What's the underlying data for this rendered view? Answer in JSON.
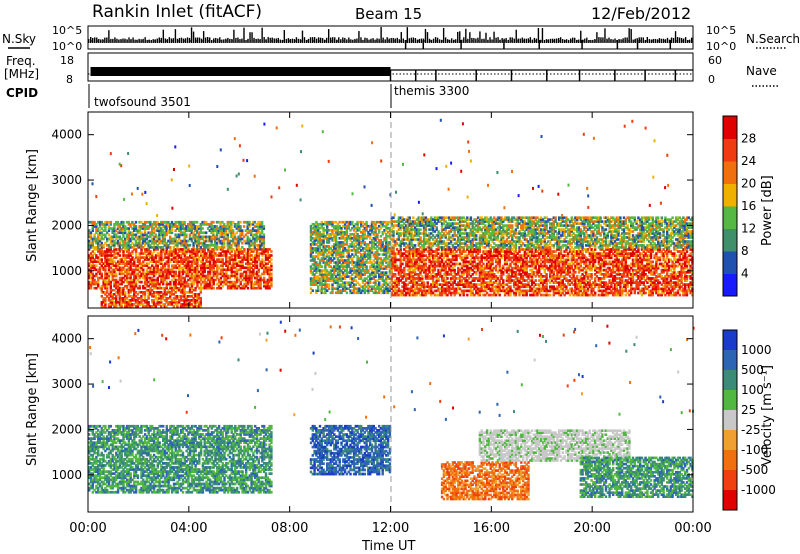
{
  "header": {
    "title": "Rankin Inlet (fitACF)",
    "beam": "Beam 15",
    "date": "12/Feb/2012"
  },
  "status_panels": {
    "nsky_label": "N.Sky",
    "nsearch_label": "N.Search",
    "freq_label_line1": "Freq.",
    "freq_label_line2": "[MHz]",
    "nave_label": "Nave",
    "cpid_label": "CPID",
    "noise_ticks_left": [
      "10^5",
      "10^0"
    ],
    "noise_ticks_right": [
      "10^5",
      "10^0"
    ],
    "freq_ticks_left": [
      "18",
      "8"
    ],
    "nave_ticks_right": [
      "60",
      "0"
    ],
    "cpid_segments": [
      {
        "label": "twofsound 3501",
        "start_hour": 0
      },
      {
        "label": "themis 3300",
        "start_hour": 12
      }
    ]
  },
  "chart_data": [
    {
      "type": "heatmap",
      "title": "",
      "xlabel": "",
      "ylabel": "Slant Range [km]",
      "xlim": [
        0,
        24
      ],
      "ylim": [
        180,
        4500
      ],
      "yticks": [
        "1000",
        "2000",
        "3000",
        "4000"
      ],
      "colorbar": {
        "label": "Power [dB]",
        "ticks": [
          "4",
          "8",
          "12",
          "16",
          "20",
          "24",
          "28"
        ],
        "colors": [
          "#1a1aff",
          "#2050b0",
          "#3f8f6a",
          "#55b845",
          "#f0b000",
          "#f07010",
          "#f03a10",
          "#e00000"
        ]
      },
      "regions": [
        {
          "hours": [
            0.0,
            7.3
          ],
          "range_km": [
            600,
            1500
          ],
          "level": "high",
          "note": "strong band"
        },
        {
          "hours": [
            0.0,
            7.0
          ],
          "range_km": [
            1500,
            2100
          ],
          "level": "medium"
        },
        {
          "hours": [
            0.5,
            4.5
          ],
          "range_km": [
            200,
            600
          ],
          "level": "high",
          "note": "descending streaks"
        },
        {
          "hours": [
            8.8,
            12.0
          ],
          "range_km": [
            500,
            2100
          ],
          "level": "medium"
        },
        {
          "hours": [
            12.0,
            24.0
          ],
          "range_km": [
            450,
            1500
          ],
          "level": "high"
        },
        {
          "hours": [
            12.0,
            24.0
          ],
          "range_km": [
            1500,
            2200
          ],
          "level": "medium"
        }
      ]
    },
    {
      "type": "heatmap",
      "title": "",
      "xlabel": "Time UT",
      "ylabel": "Slant Range [km]",
      "xlim": [
        0,
        24
      ],
      "ylim": [
        180,
        4500
      ],
      "yticks": [
        "1000",
        "2000",
        "3000",
        "4000"
      ],
      "xticks": [
        "00:00",
        "04:00",
        "08:00",
        "12:00",
        "16:00",
        "20:00",
        "00:00"
      ],
      "colorbar": {
        "label": "Velocity [m s⁻¹]",
        "ticks": [
          "1000",
          "500",
          "100",
          "25",
          "-25",
          "-100",
          "-500",
          "-1000"
        ],
        "colors": [
          "#1a3cc8",
          "#2e64b4",
          "#3a8c78",
          "#50b840",
          "#c8c8c8",
          "#f0a030",
          "#f07010",
          "#f04010",
          "#e00000"
        ]
      },
      "regions": [
        {
          "hours": [
            0.0,
            7.3
          ],
          "range_km": [
            600,
            2100
          ],
          "level": "positive_medium"
        },
        {
          "hours": [
            8.8,
            12.0
          ],
          "range_km": [
            1000,
            2100
          ],
          "level": "positive_high"
        },
        {
          "hours": [
            14.0,
            17.5
          ],
          "range_km": [
            450,
            1300
          ],
          "level": "negative_medium"
        },
        {
          "hours": [
            15.5,
            21.5
          ],
          "range_km": [
            1300,
            2000
          ],
          "level": "near_zero"
        },
        {
          "hours": [
            19.5,
            24.0
          ],
          "range_km": [
            500,
            1400
          ],
          "level": "positive_medium"
        }
      ]
    }
  ]
}
